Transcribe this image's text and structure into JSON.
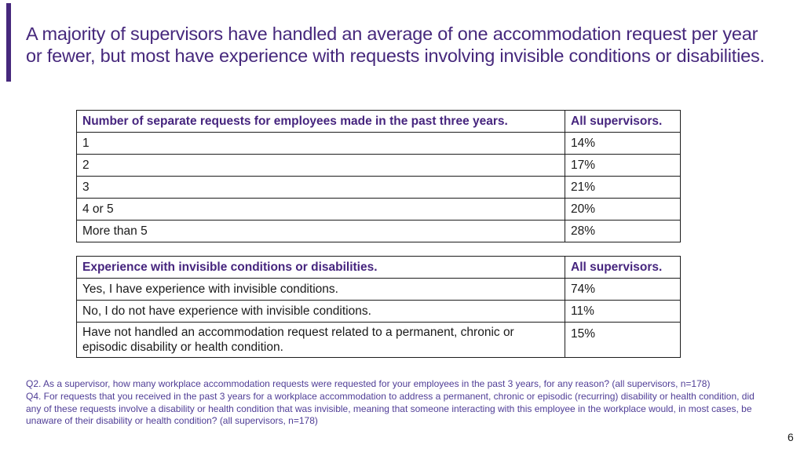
{
  "slide": {
    "title": "A majority of supervisors have handled an average of one accommodation request per year or fewer, but most have experience with requests involving invisible conditions or disabilities.",
    "page_number": "6"
  },
  "colors": {
    "accent_purple": "#46287c",
    "table_header_purple": "#46257e",
    "footnote_purple": "#4f3d96"
  },
  "tables": [
    {
      "headers": [
        "Number of separate requests for employees made in the past three years.",
        "All supervisors."
      ],
      "rows": [
        [
          "1",
          "14%"
        ],
        [
          "2",
          "17%"
        ],
        [
          "3",
          "21%"
        ],
        [
          "4 or 5",
          "20%"
        ],
        [
          "More than 5",
          "28%"
        ]
      ]
    },
    {
      "headers": [
        "Experience with invisible conditions or disabilities.",
        "All supervisors."
      ],
      "rows": [
        [
          "Yes, I have experience with invisible conditions.",
          "74%"
        ],
        [
          "No, I do not have experience with invisible conditions.",
          "11%"
        ],
        [
          "Have not handled an accommodation request related to a permanent, chronic or episodic disability or health condition.",
          "15%"
        ]
      ]
    }
  ],
  "footnotes": [
    "Q2. As a supervisor, how many workplace accommodation requests were requested for your employees in the past 3 years, for any reason? (all supervisors, n=178)",
    "Q4. For requests that you received in the past 3 years for a workplace accommodation to address a permanent, chronic or episodic (recurring) disability or health condition, did any of these requests involve a disability or health condition that was invisible, meaning that someone interacting with this employee in the workplace would, in most cases, be unaware of their disability or health condition? (all supervisors, n=178)"
  ]
}
